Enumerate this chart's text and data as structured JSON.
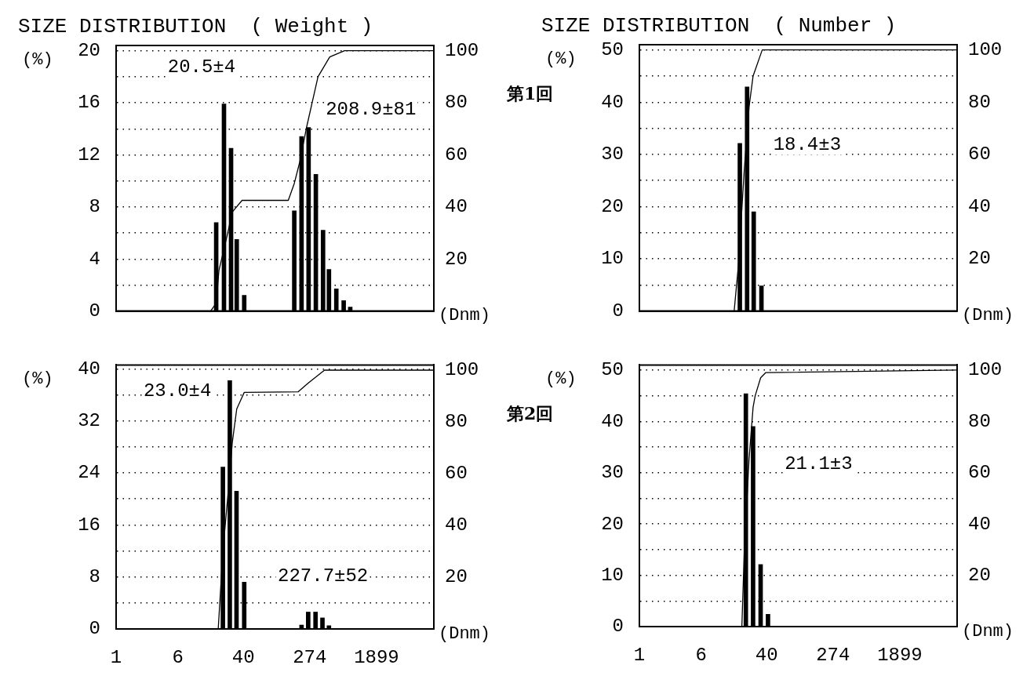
{
  "chart_data": [
    {
      "type": "bar",
      "title": "SIZE DISTRIBUTION  ( Weight )",
      "ylabel": "(%)",
      "xlabel": "(Dnm)",
      "log": "x",
      "grid": "y",
      "tick_labels": "y",
      "xlim": [
        1,
        10000
      ],
      "xticks": [
        1,
        6,
        40,
        274,
        1899
      ],
      "ylim": [
        0,
        20.4
      ],
      "yticks": [
        0,
        {
          "value": 2,
          "label": null
        },
        4,
        {
          "value": 6,
          "label": null
        },
        8,
        {
          "value": 10,
          "label": null
        },
        12,
        {
          "value": 14,
          "label": null
        },
        16,
        {
          "value": 18,
          "label": null
        },
        20
      ],
      "y2lim": [
        0,
        102
      ],
      "y2ticks": [
        20,
        40,
        60,
        80,
        100
      ],
      "series": [
        {
          "color": "#000000",
          "x": [
            18.2,
            22.8,
            28,
            33,
            41,
            175,
            216,
            265,
            327,
            403,
            478,
            592,
            733,
            886
          ],
          "values": [
            6.8,
            15.9,
            12.5,
            5.5,
            1.2,
            7.7,
            13.4,
            14.1,
            10.5,
            6.2,
            3.2,
            1.7,
            0.8,
            0.3
          ]
        },
        {
          "type": "line",
          "axis": "y2",
          "color": "#000000",
          "x": [
            15.5,
            18.2,
            19.7,
            25,
            29,
            38.5,
            147,
            175,
            206,
            250,
            348,
            489,
            752,
            10000
          ],
          "values": [
            0,
            3,
            15.6,
            29,
            38,
            42.5,
            42.5,
            49,
            57.5,
            70.6,
            90,
            97.6,
            100,
            100
          ]
        }
      ],
      "annotations": [
        "20.5±4",
        "208.9±81"
      ]
    },
    {
      "type": "bar",
      "title": "SIZE DISTRIBUTION  ( Number )",
      "ylabel": "(%)",
      "xlabel": "(Dnm)",
      "log": "x",
      "grid": "y",
      "tick_labels": "y",
      "xlim": [
        1,
        10000
      ],
      "xticks": [
        1,
        6,
        40,
        274,
        1899
      ],
      "ylim": [
        0,
        51
      ],
      "yticks": [
        0,
        {
          "value": 5,
          "label": null
        },
        10,
        {
          "value": 15,
          "label": null
        },
        20,
        {
          "value": 25,
          "label": null
        },
        30,
        {
          "value": 35,
          "label": null
        },
        40,
        {
          "value": 45,
          "label": null
        },
        50
      ],
      "y2lim": [
        0,
        102
      ],
      "y2ticks": [
        20,
        40,
        60,
        80,
        100
      ],
      "series": [
        {
          "color": "#000000",
          "x": [
            18.4,
            22.7,
            27.5,
            34.4
          ],
          "values": [
            32.1,
            42.9,
            19.0,
            4.8
          ]
        },
        {
          "type": "line",
          "axis": "y2",
          "color": "#000000",
          "x": [
            15.6,
            17.7,
            20.9,
            24,
            27,
            35.2,
            10000
          ],
          "values": [
            0,
            18,
            54,
            78,
            90,
            100,
            100
          ]
        }
      ],
      "annotations": [
        "第1回",
        "18.4±3"
      ]
    },
    {
      "type": "bar",
      "ylabel": "(%)",
      "xlabel": "(Dnm)",
      "log": "x",
      "grid": "y",
      "xlim": [
        1,
        10000
      ],
      "xticks": [
        1,
        6,
        40,
        274,
        1899
      ],
      "ylim": [
        0,
        40.6
      ],
      "yticks": [
        0,
        {
          "value": 4,
          "label": null
        },
        8,
        {
          "value": 12,
          "label": null
        },
        16,
        {
          "value": 20,
          "label": null
        },
        24,
        {
          "value": 28,
          "label": null
        },
        32,
        {
          "value": 36,
          "label": null
        },
        40
      ],
      "y2lim": [
        0,
        102
      ],
      "y2ticks": [
        20,
        40,
        60,
        80,
        100
      ],
      "series": [
        {
          "color": "#000000",
          "x": [
            22.1,
            27,
            32.8,
            41,
            216,
            262,
            324,
            396,
            478
          ],
          "values": [
            24.9,
            38.2,
            21.2,
            7.2,
            0.6,
            2.6,
            2.6,
            1.7,
            0.5
          ]
        },
        {
          "type": "line",
          "axis": "y2",
          "color": "#000000",
          "x": [
            19.3,
            22.1,
            27,
            29,
            33,
            41,
            195,
            262,
            420,
            10000
          ],
          "values": [
            0,
            30,
            60,
            72,
            85,
            91.4,
            91.6,
            95,
            100,
            100
          ]
        }
      ],
      "annotations": [
        "23.0±4",
        "227.7±52"
      ]
    },
    {
      "type": "bar",
      "ylabel": "(%)",
      "xlabel": "(Dnm)",
      "log": "x",
      "grid": "y",
      "xlim": [
        1,
        10000
      ],
      "xticks": [
        1,
        6,
        40,
        274,
        1899
      ],
      "ylim": [
        0,
        51
      ],
      "yticks": [
        0,
        {
          "value": 5,
          "label": null
        },
        10,
        {
          "value": 15,
          "label": null
        },
        20,
        {
          "value": 25,
          "label": null
        },
        30,
        {
          "value": 35,
          "label": null
        },
        40,
        {
          "value": 45,
          "label": null
        },
        50
      ],
      "y2lim": [
        0,
        102
      ],
      "y2ticks": [
        20,
        40,
        60,
        80,
        100
      ],
      "series": [
        {
          "color": "#000000",
          "x": [
            21.9,
            27,
            33.6,
            41.6
          ],
          "values": [
            45.4,
            39.0,
            12.1,
            2.4
          ]
        },
        {
          "type": "line",
          "axis": "y2",
          "color": "#000000",
          "x": [
            19.5,
            20.9,
            24,
            27,
            28.7,
            33.6,
            38.8,
            10000
          ],
          "values": [
            0,
            29,
            65,
            85.5,
            90,
            97,
            99,
            100
          ]
        }
      ],
      "annotations": [
        "第2回",
        "21.1±3"
      ]
    }
  ]
}
